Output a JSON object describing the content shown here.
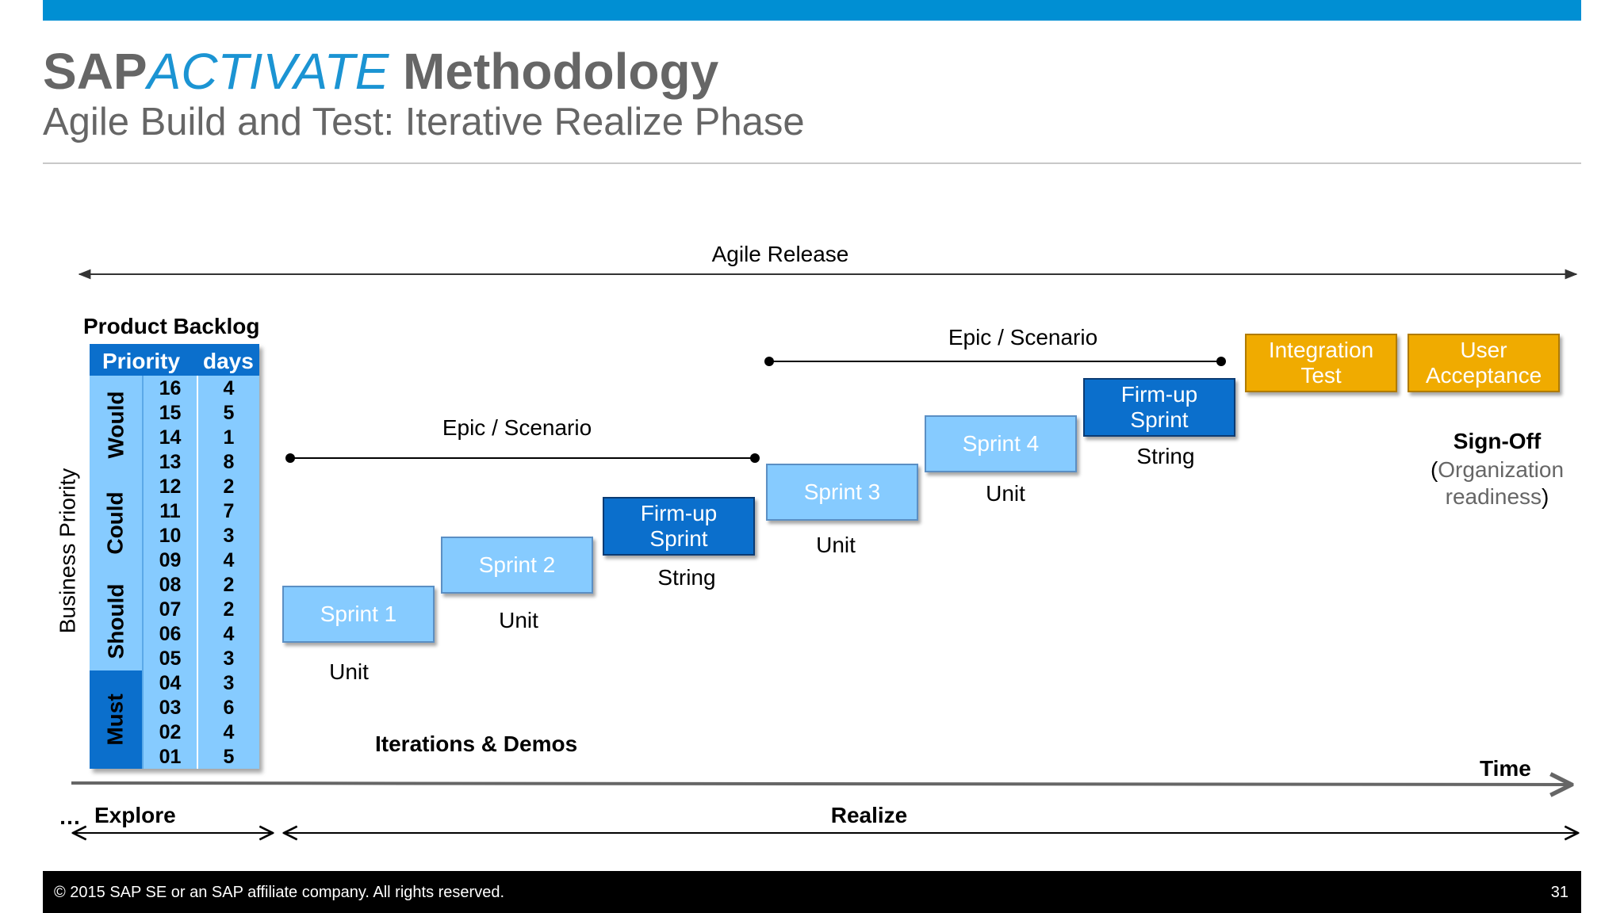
{
  "header": {
    "title_sap": "SAP",
    "title_activate": "ACTIVATE",
    "title_rest": " Methodology",
    "subtitle": "Agile Build and Test: Iterative Realize Phase"
  },
  "diagram": {
    "agile_release": "Agile Release",
    "epic_1": "Epic / Scenario",
    "epic_2": "Epic / Scenario",
    "y_axis": "Business Priority",
    "iterations": "Iterations & Demos",
    "time": "Time",
    "explore_dots": "…",
    "explore": "Explore",
    "realize": "Realize",
    "sign_off": "Sign-Off",
    "sign_off_sub_open": "(",
    "sign_off_sub_1": "Organization",
    "sign_off_sub_2": "readiness",
    "sign_off_sub_close": ")"
  },
  "backlog": {
    "title": "Product Backlog",
    "col_priority": "Priority",
    "col_days": "days",
    "categories": [
      "Would",
      "Could",
      "Should",
      "Must"
    ],
    "priorities": [
      "16",
      "15",
      "14",
      "13",
      "12",
      "11",
      "10",
      "09",
      "08",
      "07",
      "06",
      "05",
      "04",
      "03",
      "02",
      "01"
    ],
    "days": [
      "4",
      "5",
      "1",
      "8",
      "2",
      "7",
      "3",
      "4",
      "2",
      "2",
      "4",
      "3",
      "3",
      "6",
      "4",
      "5"
    ]
  },
  "sprints": {
    "sprint1": "Sprint 1",
    "sprint1_type": "Unit",
    "sprint2": "Sprint 2",
    "sprint2_type": "Unit",
    "firmup1_line1": "Firm-up",
    "firmup1_line2": "Sprint",
    "firmup1_type": "String",
    "sprint3": "Sprint 3",
    "sprint3_type": "Unit",
    "sprint4": "Sprint 4",
    "sprint4_type": "Unit",
    "firmup2_line1": "Firm-up",
    "firmup2_line2": "Sprint",
    "firmup2_type": "String",
    "integration_line1": "Integration",
    "integration_line2": "Test",
    "uat_line1": "User",
    "uat_line2": "Acceptance"
  },
  "footer": {
    "copyright": "©  2015 SAP SE or an SAP affiliate company. All rights reserved.",
    "page": "31"
  },
  "colors": {
    "brand_blue": "#008fd3",
    "light_blue": "#86cbff",
    "dark_blue": "#0b6fcc",
    "gold": "#f0ab00"
  }
}
